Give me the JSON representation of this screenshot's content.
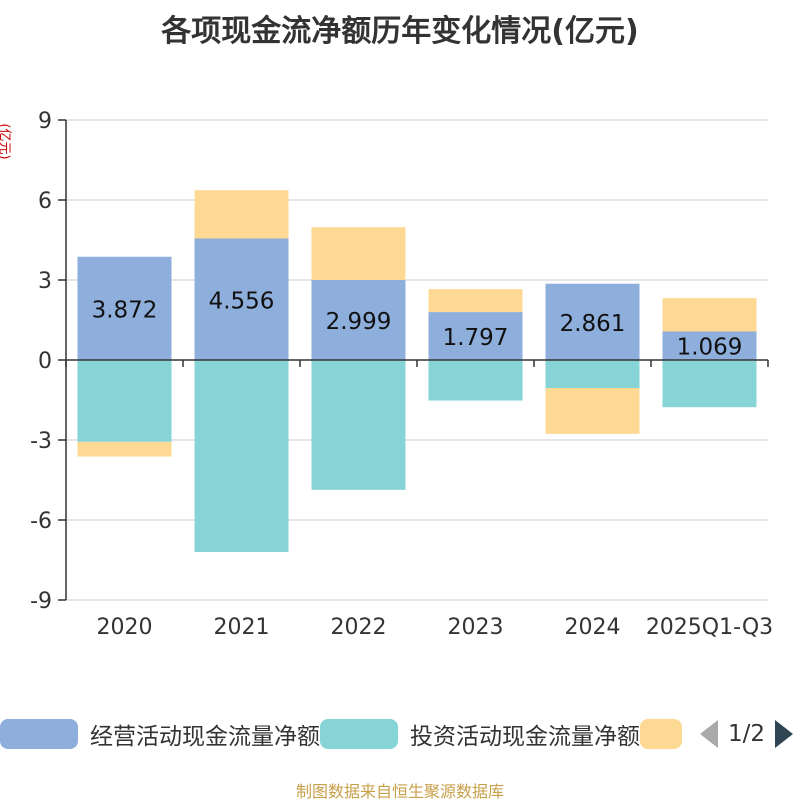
{
  "title": "各项现金流净额历年变化情况(亿元)",
  "unit_label": "(亿元)",
  "source": "制图数据来自恒生聚源数据库",
  "legend": {
    "page_indicator": "1/2"
  },
  "colors": {
    "operating": "#8eaedc",
    "investing": "#86d4d6",
    "financing": "#fed994",
    "grid": "#cccccc",
    "axis": "#333333",
    "text": "#333333"
  },
  "chart_data": {
    "type": "bar",
    "stacked": true,
    "title": "各项现金流净额历年变化情况(亿元)",
    "ylabel": "(亿元)",
    "ylim": [
      -9,
      9
    ],
    "yticks": [
      9,
      6,
      3,
      0,
      -3,
      -6,
      -9
    ],
    "categories": [
      "2020",
      "2021",
      "2022",
      "2023",
      "2024",
      "2025Q1-Q3"
    ],
    "series": [
      {
        "name": "经营活动现金流量净额",
        "values": [
          3.872,
          4.556,
          2.999,
          1.797,
          2.861,
          1.069
        ],
        "labels": [
          "3.872",
          "4.556",
          "2.999",
          "1.797",
          "2.861",
          "1.069"
        ]
      },
      {
        "name": "投资活动现金流量净额",
        "values": [
          -3.07,
          -7.2,
          -4.87,
          -1.52,
          -1.05,
          -1.77
        ]
      },
      {
        "name": "",
        "values": [
          -0.55,
          1.81,
          1.98,
          0.86,
          -1.72,
          1.25
        ]
      }
    ]
  }
}
